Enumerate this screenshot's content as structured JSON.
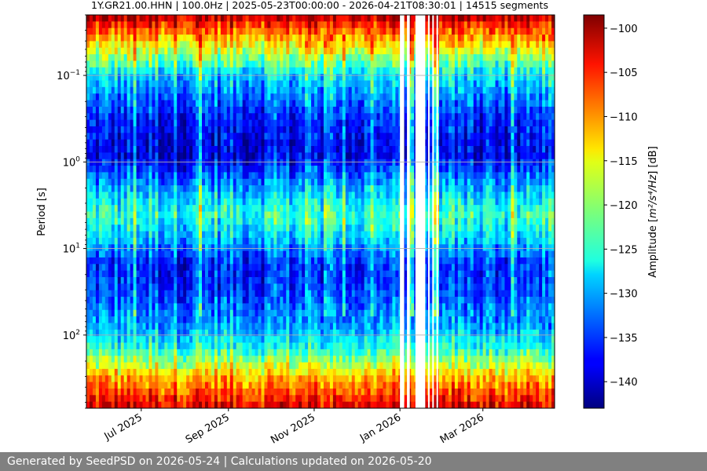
{
  "chart_data": {
    "type": "heatmap",
    "title": "1Y.GR21.00.HHN | 100.0Hz | 2025-05-23T00:00:00 - 2026-04-21T08:30:01 | 14515 segments",
    "ylabel": "Period [s]",
    "xlabel": "",
    "y_scale": "log",
    "y_range_s": [
      0.02,
      700
    ],
    "x_range": [
      "2025-05-23",
      "2026-04-21"
    ],
    "x_ticks": [
      {
        "date": "2025-07-01",
        "label": "Jul 2025"
      },
      {
        "date": "2025-09-01",
        "label": "Sep 2025"
      },
      {
        "date": "2025-11-01",
        "label": "Nov 2025"
      },
      {
        "date": "2026-01-01",
        "label": "Jan 2026"
      },
      {
        "date": "2026-03-01",
        "label": "Mar 2026"
      }
    ],
    "y_ticks": [
      {
        "value": 0.1,
        "base": "10",
        "exp": "−1"
      },
      {
        "value": 1,
        "base": "10",
        "exp": "0"
      },
      {
        "value": 10,
        "base": "10",
        "exp": "1"
      },
      {
        "value": 100,
        "base": "10",
        "exp": "2"
      }
    ],
    "grid": true,
    "data_gaps": [
      [
        "2026-01-01",
        "2026-01-04"
      ],
      [
        "2026-01-06",
        "2026-01-08"
      ],
      [
        "2026-01-12",
        "2026-01-19"
      ],
      [
        "2026-01-21",
        "2026-01-22"
      ],
      [
        "2026-01-24",
        "2026-01-25"
      ],
      [
        "2026-01-27",
        "2026-01-28"
      ]
    ],
    "period_profile_db": [
      {
        "period_s": 0.02,
        "db": -100
      },
      {
        "period_s": 0.04,
        "db": -113
      },
      {
        "period_s": 0.1,
        "db": -128
      },
      {
        "period_s": 0.3,
        "db": -136
      },
      {
        "period_s": 0.8,
        "db": -139
      },
      {
        "period_s": 2,
        "db": -130
      },
      {
        "period_s": 4,
        "db": -124
      },
      {
        "period_s": 8,
        "db": -129
      },
      {
        "period_s": 15,
        "db": -136
      },
      {
        "period_s": 30,
        "db": -135
      },
      {
        "period_s": 80,
        "db": -130
      },
      {
        "period_s": 150,
        "db": -124
      },
      {
        "period_s": 300,
        "db": -112
      },
      {
        "period_s": 700,
        "db": -102
      }
    ],
    "colorbar": {
      "label_text": "Amplitude [",
      "label_unit": "m²/s⁴/Hz",
      "label_suffix": "] [dB]",
      "range_db": [
        -143,
        -98.5
      ],
      "colormap": "jet",
      "ticks": [
        "−100",
        "−105",
        "−110",
        "−115",
        "−120",
        "−125",
        "−130",
        "−135",
        "−140"
      ],
      "tick_values": [
        -100,
        -105,
        -110,
        -115,
        -120,
        -125,
        -130,
        -135,
        -140
      ]
    }
  },
  "footer": {
    "text": "Generated by SeedPSD on 2026-05-24 | Calculations updated on 2026-05-20"
  }
}
